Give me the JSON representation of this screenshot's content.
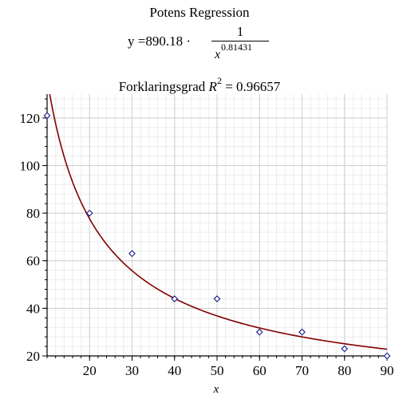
{
  "title": {
    "line1": "Potens Regression",
    "eq_prefix": "y =890.18 ·",
    "frac_numerator": "1",
    "frac_var": "x",
    "frac_exponent": "0.81431",
    "r2_label": "Forklaringsgrad",
    "r2_symbol": "R",
    "r2_power": "2",
    "r2_value": "= 0.96657"
  },
  "chart_data": {
    "type": "scatter",
    "title": "Potens Regression",
    "xlabel": "x",
    "ylabel": "",
    "xlim": [
      10,
      90
    ],
    "ylim": [
      20,
      130
    ],
    "x_ticks": [
      20,
      30,
      40,
      50,
      60,
      70,
      80,
      90
    ],
    "y_ticks": [
      20,
      40,
      60,
      80,
      100,
      120
    ],
    "x_minor_step": 2,
    "y_minor_step": 4,
    "grid": true,
    "series": [
      {
        "name": "data",
        "kind": "scatter",
        "marker": "diamond",
        "color": "#1a1a8c",
        "x": [
          10,
          20,
          30,
          40,
          50,
          60,
          70,
          80,
          90
        ],
        "y": [
          121,
          80,
          63,
          44,
          44,
          30,
          30,
          23,
          20
        ]
      },
      {
        "name": "fit",
        "kind": "line",
        "color": "#800000",
        "formula": "890.18 * x^(-0.81431)",
        "a": 890.18,
        "b": 0.81431
      }
    ]
  }
}
